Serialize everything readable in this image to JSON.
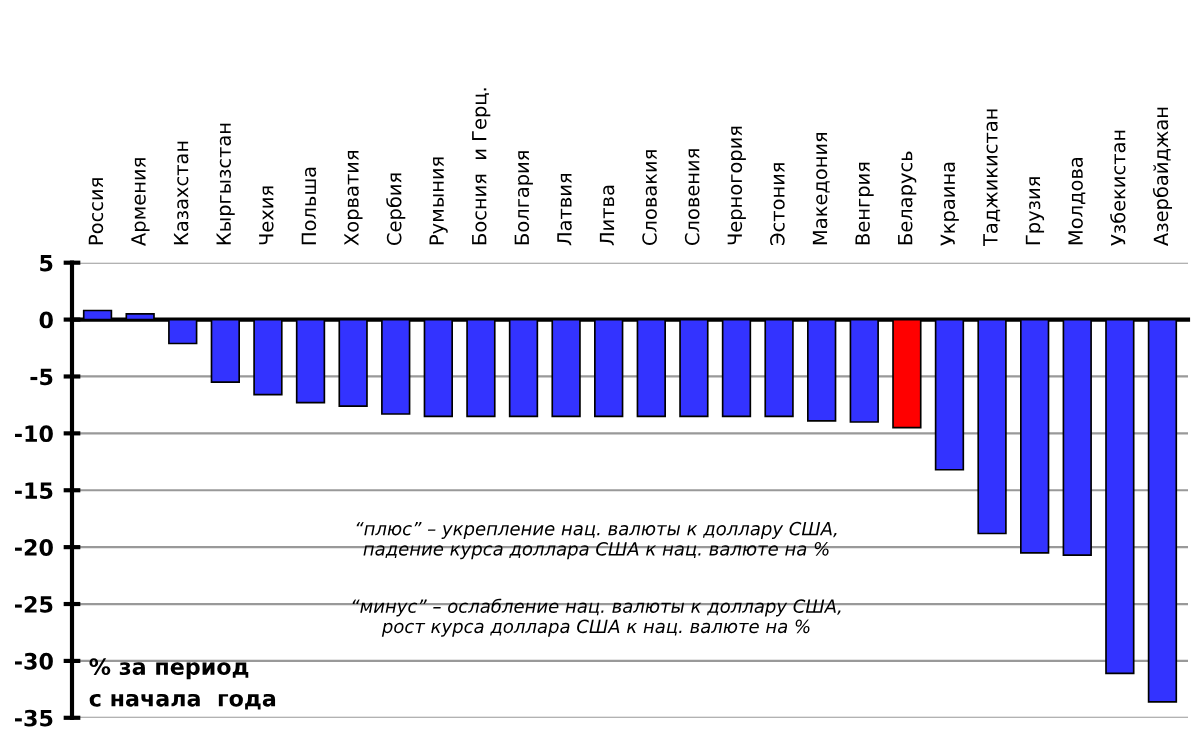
{
  "chart_data": {
    "type": "bar",
    "categories": [
      "Россия",
      "Армения",
      "Казахстан",
      "Кыргызстан",
      "Чехия",
      "Польша",
      "Хорватия",
      "Сербия",
      "Румыния",
      "Босния  и Герц.",
      "Болгария",
      "Латвия",
      "Литва",
      "Словакия",
      "Словения",
      "Черногория",
      "Эстония",
      "Македония",
      "Венгрия",
      "Беларусь",
      "Украина",
      "Таджикистан",
      "Грузия",
      "Молдова",
      "Узбекистан",
      "Азербайджан"
    ],
    "values": [
      0.8,
      0.5,
      -2.1,
      -5.5,
      -6.6,
      -7.3,
      -7.6,
      -8.3,
      -8.5,
      -8.5,
      -8.5,
      -8.5,
      -8.5,
      -8.5,
      -8.5,
      -8.5,
      -8.5,
      -8.9,
      -9.0,
      -9.5,
      -13.2,
      -18.8,
      -20.5,
      -20.7,
      -31.1,
      -33.6
    ],
    "colors": [
      "#3333ff",
      "#3333ff",
      "#3333ff",
      "#3333ff",
      "#3333ff",
      "#3333ff",
      "#3333ff",
      "#3333ff",
      "#3333ff",
      "#3333ff",
      "#3333ff",
      "#3333ff",
      "#3333ff",
      "#3333ff",
      "#3333ff",
      "#3333ff",
      "#3333ff",
      "#3333ff",
      "#3333ff",
      "#ff0000",
      "#3333ff",
      "#3333ff",
      "#3333ff",
      "#3333ff",
      "#3333ff",
      "#3333ff"
    ],
    "ylim": [
      -35,
      5
    ],
    "yticks": [
      5,
      0,
      -5,
      -10,
      -15,
      -20,
      -25,
      -30,
      -35
    ],
    "grid": "y",
    "annotations": [
      "“плюс” – укрепление нац. валюты к доллару США,\nпадение курса доллара США к нац. валюте на %",
      "“минус” – ослабление нац. валюты к доллару США,\nрост курса доллара США к нац. валюте на %",
      "% за период\nс начала  года"
    ]
  }
}
